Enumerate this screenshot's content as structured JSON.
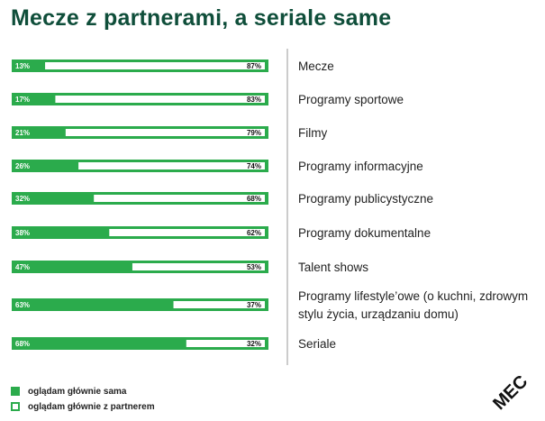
{
  "title": "Mecze z partnerami, a seriale same",
  "colors": {
    "green": "#2bab4c",
    "white": "#ffffff",
    "title": "#0f4e3a",
    "axis": "#999999"
  },
  "legend": [
    {
      "label": "oglądam głównie sama",
      "swatch": "filled-green"
    },
    {
      "label": "oglądam głównie z partnerem",
      "swatch": "outlined-green"
    }
  ],
  "logo": {
    "text": "MEC",
    "icon": "mec-logo"
  },
  "chart_data": {
    "type": "bar",
    "orientation": "horizontal",
    "stacked": true,
    "categories": [
      "Mecze",
      "Programy sportowe",
      "Filmy",
      "Programy informacyjne",
      "Programy publicystyczne",
      "Programy dokumentalne",
      "Talent shows",
      "Programy lifestyle’owe (o kuchni, zdrowym stylu życia, urządzaniu domu)",
      "Seriale"
    ],
    "category_lines": [
      [
        "Mecze"
      ],
      [
        "Programy sportowe"
      ],
      [
        "Filmy"
      ],
      [
        "Programy informacyjne"
      ],
      [
        "Programy publicystyczne"
      ],
      [
        "Programy dokumentalne"
      ],
      [
        "Talent shows"
      ],
      [
        "Programy lifestyle’owe (o kuchni, zdrowym",
        "stylu życia, urządzaniu domu)"
      ],
      [
        "Seriale"
      ]
    ],
    "series": [
      {
        "name": "oglądam głównie sama",
        "values": [
          13,
          17,
          21,
          26,
          32,
          38,
          47,
          63,
          68
        ],
        "labels": [
          "13%",
          "17%",
          "21%",
          "26%",
          "32%",
          "38%",
          "47%",
          "63%",
          "68%"
        ]
      },
      {
        "name": "oglądam głównie z partnerem",
        "values": [
          87,
          83,
          79,
          74,
          68,
          62,
          53,
          37,
          32
        ],
        "labels": [
          "87%",
          "83%",
          "79%",
          "74%",
          "68%",
          "62%",
          "53%",
          "37%",
          "32%"
        ]
      }
    ],
    "xlim": [
      0,
      100
    ],
    "grid": false,
    "legend_position": "bottom-left"
  }
}
